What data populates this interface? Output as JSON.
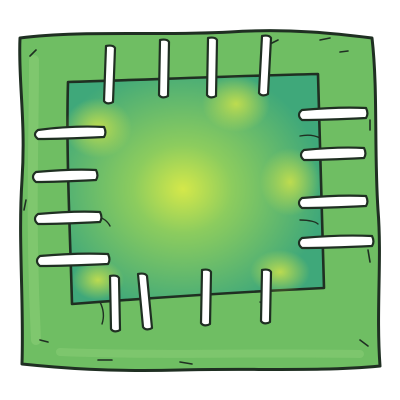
{
  "illustration": {
    "subject": "patch-icon",
    "stitch_count": 16,
    "colors": {
      "fabric_outer": "#6fbe63",
      "fabric_outer_light": "#8fd07a",
      "patch_base": "#3fa87a",
      "patch_center_glow": "#d4e84a",
      "patch_corner_glow": "#c8e04c",
      "stitch_fill": "#ffffff",
      "outline": "#1f2f22",
      "background": "#ffffff"
    }
  }
}
